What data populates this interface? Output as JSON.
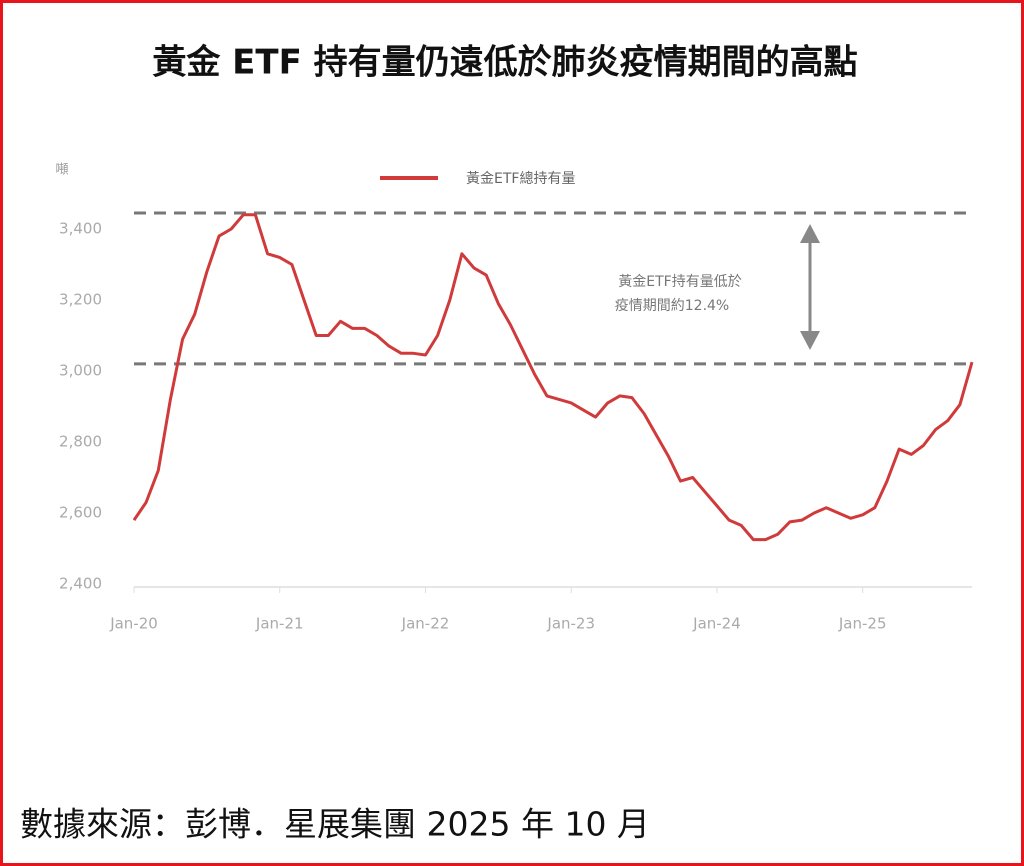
{
  "chart_data": {
    "type": "line",
    "title": "黃金 ETF 持有量仍遠低於肺炎疫情期間的高點",
    "y_label": "噸",
    "footer": "數據來源：彭博．星展集團 2025 年 10 月",
    "annotation": [
      "黃金ETF持有量低於",
      "疫情期間約12.4%"
    ],
    "legend": "top",
    "hlines": [
      3445,
      3020
    ],
    "hline_color": "#777777",
    "x": [
      "2020-01",
      "2020-02",
      "2020-03",
      "2020-04",
      "2020-05",
      "2020-06",
      "2020-07",
      "2020-08",
      "2020-09",
      "2020-10",
      "2020-11",
      "2020-12",
      "2021-01",
      "2021-02",
      "2021-03",
      "2021-04",
      "2021-05",
      "2021-06",
      "2021-07",
      "2021-08",
      "2021-09",
      "2021-10",
      "2021-11",
      "2021-12",
      "2022-01",
      "2022-02",
      "2022-03",
      "2022-04",
      "2022-05",
      "2022-06",
      "2022-07",
      "2022-08",
      "2022-09",
      "2022-10",
      "2022-11",
      "2022-12",
      "2023-01",
      "2023-02",
      "2023-03",
      "2023-04",
      "2023-05",
      "2023-06",
      "2023-07",
      "2023-08",
      "2023-09",
      "2023-10",
      "2023-11",
      "2023-12",
      "2024-01",
      "2024-02",
      "2024-03",
      "2024-04",
      "2024-05",
      "2024-06",
      "2024-07",
      "2024-08",
      "2024-09",
      "2024-10",
      "2024-11",
      "2024-12",
      "2025-01",
      "2025-02",
      "2025-03",
      "2025-04",
      "2025-05",
      "2025-06",
      "2025-07",
      "2025-08",
      "2025-09",
      "2025-10"
    ],
    "series": [
      {
        "name": "黃金ETF總持有量",
        "color": "#d03a3a",
        "values": [
          2580,
          2630,
          2720,
          2920,
          3090,
          3160,
          3280,
          3380,
          3400,
          3440,
          3440,
          3330,
          3320,
          3300,
          3200,
          3100,
          3100,
          3140,
          3120,
          3120,
          3100,
          3070,
          3050,
          3050,
          3045,
          3100,
          3200,
          3330,
          3290,
          3270,
          3190,
          3130,
          3060,
          2990,
          2930,
          2920,
          2910,
          2890,
          2870,
          2910,
          2930,
          2925,
          2880,
          2820,
          2760,
          2690,
          2700,
          2660,
          2620,
          2580,
          2565,
          2525,
          2525,
          2540,
          2575,
          2580,
          2600,
          2615,
          2600,
          2585,
          2595,
          2615,
          2690,
          2780,
          2765,
          2790,
          2835,
          2860,
          2905,
          3025
        ]
      }
    ],
    "xlim": [
      "2020-01",
      "2025-10"
    ],
    "xticks": [
      {
        "value": "2020-01",
        "label": "Jan-20"
      },
      {
        "value": "2021-01",
        "label": "Jan-21"
      },
      {
        "value": "2022-01",
        "label": "Jan-22"
      },
      {
        "value": "2023-01",
        "label": "Jan-23"
      },
      {
        "value": "2024-01",
        "label": "Jan-24"
      },
      {
        "value": "2025-01",
        "label": "Jan-25"
      }
    ],
    "ylim": [
      2400,
      3400
    ],
    "yticks": [
      {
        "value": 2400,
        "label": "2,400"
      },
      {
        "value": 2600,
        "label": "2,600"
      },
      {
        "value": 2800,
        "label": "2,800"
      },
      {
        "value": 3000,
        "label": "3,000"
      },
      {
        "value": 3200,
        "label": "3,200"
      },
      {
        "value": 3400,
        "label": "3,400"
      }
    ]
  }
}
